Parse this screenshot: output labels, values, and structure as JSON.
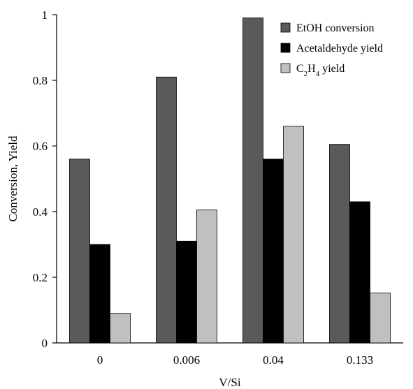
{
  "chart_data": {
    "type": "bar",
    "title": "",
    "xlabel": "V/Si",
    "ylabel": "Conversion, Yield",
    "categories": [
      "0",
      "0.006",
      "0.04",
      "0.133"
    ],
    "ylim": [
      0,
      1
    ],
    "yticks": [
      "0",
      "0.2",
      "0.4",
      "0.6",
      "0.8",
      "1"
    ],
    "grid": false,
    "legend_position": "top-right",
    "series": [
      {
        "name": "EtOH conversion",
        "name_base": "EtOH conversion",
        "color": "#5a5a5a",
        "values": [
          0.56,
          0.81,
          0.99,
          0.605
        ]
      },
      {
        "name": "Acetaldehyde yield",
        "name_base": "Acetaldehyde yield",
        "color": "#000000",
        "values": [
          0.3,
          0.31,
          0.56,
          0.43
        ]
      },
      {
        "name": "C2H4 yield",
        "name_parts": [
          "C",
          "2",
          "H",
          "4",
          " yield"
        ],
        "color": "#c0c0c0",
        "values": [
          0.09,
          0.405,
          0.66,
          0.152
        ]
      }
    ]
  }
}
